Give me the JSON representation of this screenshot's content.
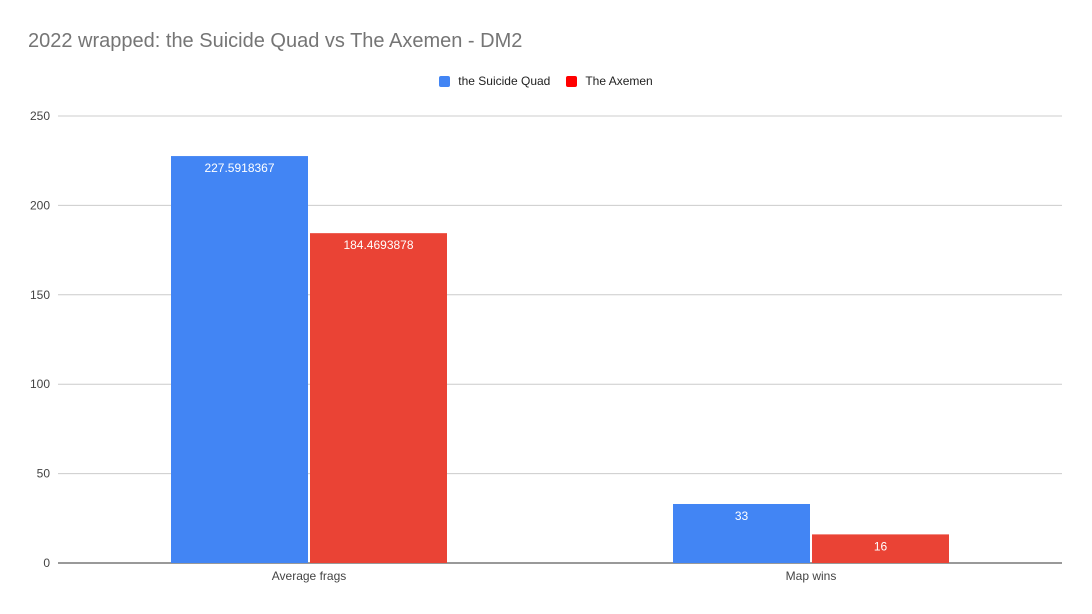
{
  "chart_data": {
    "type": "bar",
    "title": "2022 wrapped: the Suicide Quad vs The Axemen - DM2",
    "categories": [
      "Average frags",
      "Map wins"
    ],
    "series": [
      {
        "name": "the Suicide Quad",
        "color": "#4285f4",
        "values": [
          227.5918367,
          33
        ],
        "labels": [
          "227.5918367",
          "33"
        ]
      },
      {
        "name": "The Axemen",
        "color": "#ea4335",
        "legend_color": "#ff0000",
        "values": [
          184.4693878,
          16
        ],
        "labels": [
          "184.4693878",
          "16"
        ]
      }
    ],
    "xlabel": "",
    "ylabel": "",
    "ylim": [
      0,
      250
    ],
    "yticks": [
      0,
      50,
      100,
      150,
      200,
      250
    ],
    "grid": true,
    "legend_position": "top-center"
  }
}
